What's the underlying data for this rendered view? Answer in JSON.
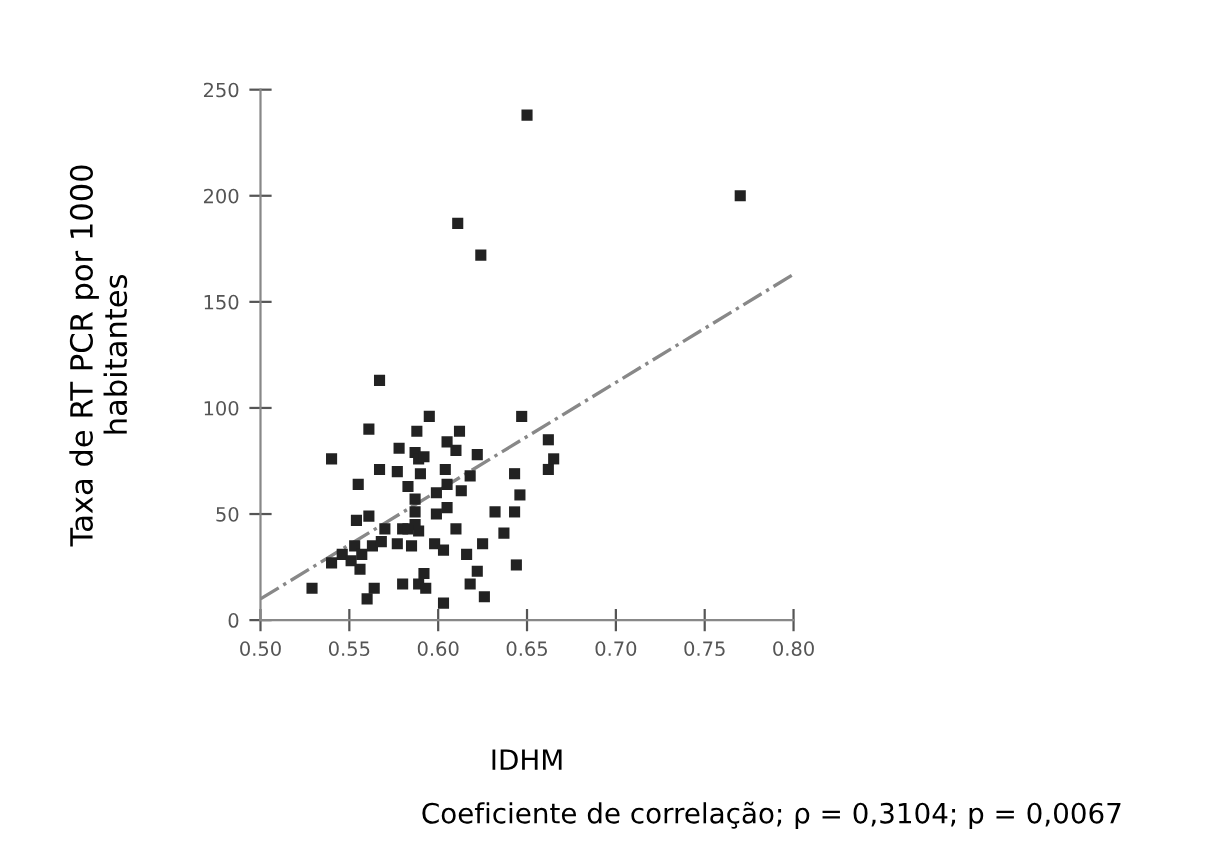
{
  "chart_data": {
    "type": "scatter",
    "xlabel": "IDHM",
    "ylabel": "Taxa de RT PCR por 1000\nhabitantes",
    "annotations": [
      "Coeficiente de correlação; ρ = 0,3104; p = 0,0067"
    ],
    "series": [
      {
        "color": "#222222",
        "marker": "square",
        "x": [
          0.529,
          0.54,
          0.54,
          0.546,
          0.551,
          0.553,
          0.556,
          0.557,
          0.554,
          0.555,
          0.561,
          0.561,
          0.56,
          0.564,
          0.563,
          0.567,
          0.567,
          0.57,
          0.568,
          0.577,
          0.577,
          0.578,
          0.58,
          0.58,
          0.583,
          0.583,
          0.585,
          0.587,
          0.587,
          0.587,
          0.587,
          0.588,
          0.589,
          0.589,
          0.59,
          0.589,
          0.592,
          0.592,
          0.593,
          0.595,
          0.598,
          0.599,
          0.599,
          0.603,
          0.603,
          0.604,
          0.605,
          0.605,
          0.605,
          0.61,
          0.61,
          0.612,
          0.613,
          0.616,
          0.618,
          0.618,
          0.622,
          0.622,
          0.625,
          0.626,
          0.632,
          0.637,
          0.643,
          0.643,
          0.644,
          0.646,
          0.647,
          0.662,
          0.662,
          0.665,
          0.611,
          0.624,
          0.65,
          0.77
        ],
        "values": [
          15,
          27,
          76,
          31,
          28,
          35,
          24,
          31,
          47,
          64,
          49,
          90,
          10,
          15,
          35,
          113,
          71,
          43,
          37,
          36,
          70,
          81,
          43,
          17,
          63,
          43,
          35,
          45,
          57,
          51,
          79,
          89,
          76,
          17,
          69,
          42,
          77,
          22,
          15,
          96,
          36,
          60,
          50,
          8,
          33,
          71,
          84,
          53,
          64,
          80,
          43,
          89,
          61,
          31,
          17,
          68,
          78,
          23,
          36,
          11,
          51,
          41,
          51,
          69,
          26,
          59,
          96,
          71,
          85,
          76,
          187,
          172,
          238,
          200
        ]
      },
      {
        "type": "line",
        "color": "#888888",
        "line_style": "dashdot",
        "x": [
          0.5,
          0.8
        ],
        "values": [
          10,
          163
        ]
      }
    ],
    "xlim": [
      0.5,
      0.8
    ],
    "ylim": [
      0,
      250
    ],
    "xticks": [
      {
        "value": 0.5,
        "label": "0.50"
      },
      {
        "value": 0.55,
        "label": "0.55"
      },
      {
        "value": 0.6,
        "label": "0.60"
      },
      {
        "value": 0.65,
        "label": "0.65"
      },
      {
        "value": 0.7,
        "label": "0.70"
      },
      {
        "value": 0.75,
        "label": "0.75"
      },
      {
        "value": 0.8,
        "label": "0.80"
      }
    ],
    "yticks": [
      0,
      50,
      100,
      150,
      200,
      250
    ],
    "grid": false,
    "legend": false
  }
}
